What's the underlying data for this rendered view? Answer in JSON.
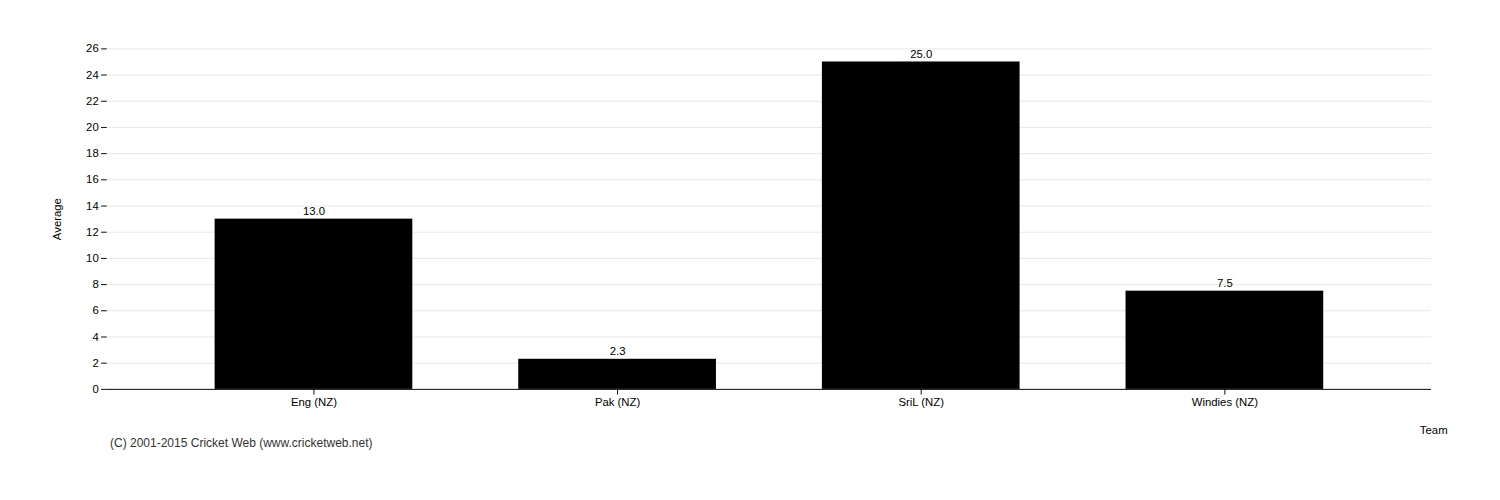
{
  "chart_data": {
    "type": "bar",
    "categories": [
      "Eng (NZ)",
      "Pak (NZ)",
      "SriL (NZ)",
      "Windies (NZ)"
    ],
    "values": [
      13.0,
      2.3,
      25.0,
      7.5
    ],
    "value_labels": [
      "13.0",
      "2.3",
      "25.0",
      "7.5"
    ],
    "data_labels": true,
    "xlabel": "Team",
    "ylabel": "Average",
    "ylim": [
      0,
      26
    ],
    "yticks": [
      0,
      2,
      4,
      6,
      8,
      10,
      12,
      14,
      16,
      18,
      20,
      22,
      24,
      26
    ],
    "grid": true,
    "caption": "(C) 2001-2015 Cricket Web (www.cricketweb.net)"
  }
}
